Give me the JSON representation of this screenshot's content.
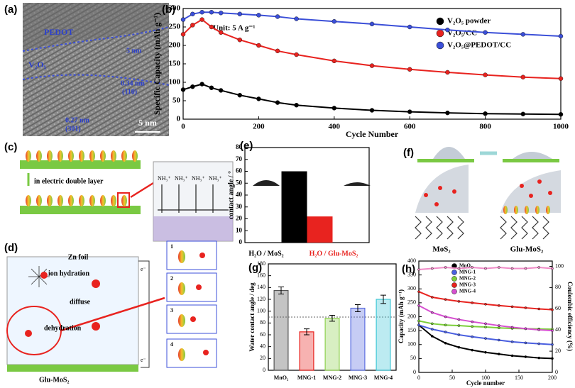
{
  "chart_data": [
    {
      "type": "line",
      "label": "(b)",
      "annotation": "Unit: 5 A g⁻¹",
      "x_label": "Cycle Number",
      "y_label": "Specific Capacity (mAh g⁻¹)",
      "x": [
        0,
        25,
        50,
        75,
        100,
        150,
        200,
        250,
        300,
        400,
        500,
        600,
        700,
        800,
        900,
        1000
      ],
      "xlim": [
        0,
        1000
      ],
      "xticks": [
        0,
        200,
        400,
        600,
        800,
        1000
      ],
      "ylim": [
        0,
        300
      ],
      "yticks": [
        0,
        50,
        100,
        150,
        200,
        250,
        300
      ],
      "markers": true,
      "series": [
        {
          "name": "V₂O₅ powder",
          "color": "#000000",
          "values": [
            80,
            88,
            95,
            85,
            78,
            65,
            55,
            45,
            38,
            30,
            24,
            20,
            17,
            15,
            14,
            13
          ]
        },
        {
          "name": "V₂O₅/CC",
          "color": "#e8231f",
          "values": [
            230,
            255,
            270,
            250,
            235,
            215,
            200,
            185,
            175,
            158,
            145,
            135,
            127,
            120,
            114,
            110
          ]
        },
        {
          "name": "V₂O₅@PEDOT/CC",
          "color": "#3b4fd8",
          "values": [
            270,
            285,
            290,
            290,
            288,
            285,
            282,
            278,
            272,
            265,
            258,
            250,
            242,
            235,
            230,
            225
          ]
        }
      ]
    },
    {
      "type": "bar",
      "label": "(e)",
      "y_label": "contact angle / °",
      "categories": [
        "H₂O / MoS₂",
        "H₂O / Glu-MoS₂"
      ],
      "values": [
        60,
        22
      ],
      "colors": [
        "#000000",
        "#e8231f"
      ],
      "ylim": [
        0,
        80
      ],
      "yticks": [
        0,
        10,
        20,
        30,
        40,
        50,
        60,
        70,
        80
      ]
    },
    {
      "type": "bar",
      "label": "(g)",
      "y_label": "Water contact angle / deg",
      "categories": [
        "MnO₂",
        "MNG-1",
        "MNG-2",
        "MNG-3",
        "MNG-4"
      ],
      "values": [
        135,
        65,
        88,
        105,
        120
      ],
      "errors": [
        6,
        5,
        5,
        6,
        7
      ],
      "colors": [
        "#555555",
        "#e8231f",
        "#8fd14f",
        "#5b6ee0",
        "#3fc7d6"
      ],
      "reference_line": 90,
      "ylim": [
        0,
        180
      ],
      "yticks": [
        0,
        20,
        40,
        60,
        80,
        100,
        120,
        140,
        160,
        180
      ]
    },
    {
      "type": "line",
      "label": "(h)",
      "x_label": "Cycle number",
      "y_label": "Capacity (mAh g⁻¹)",
      "y2_label": "Coulombic efficiency (%)",
      "x": [
        0,
        20,
        40,
        60,
        80,
        100,
        120,
        140,
        160,
        180,
        200
      ],
      "xlim": [
        0,
        200
      ],
      "xticks": [
        0,
        50,
        100,
        150,
        200
      ],
      "ylim": [
        0,
        400
      ],
      "yticks": [
        0,
        50,
        100,
        150,
        200,
        250,
        300,
        350,
        400
      ],
      "y2lim": [
        0,
        105
      ],
      "y2ticks": [
        0,
        20,
        40,
        60,
        80,
        100
      ],
      "markers": true,
      "series": [
        {
          "name": "MnO₂",
          "color": "#000000",
          "values": [
            170,
            130,
            105,
            90,
            80,
            72,
            66,
            60,
            56,
            52,
            50
          ]
        },
        {
          "name": "MNG-1",
          "color": "#4a5fe0",
          "values": [
            170,
            155,
            145,
            135,
            128,
            122,
            116,
            110,
            106,
            103,
            100
          ]
        },
        {
          "name": "MNG-2",
          "color": "#7ccf3a",
          "values": [
            185,
            175,
            170,
            168,
            165,
            163,
            160,
            158,
            157,
            156,
            155
          ]
        },
        {
          "name": "MNG-3",
          "color": "#e8231f",
          "values": [
            290,
            270,
            262,
            255,
            250,
            245,
            240,
            236,
            232,
            228,
            225
          ]
        },
        {
          "name": "MNG-4",
          "color": "#d64fd0",
          "values": [
            240,
            215,
            200,
            190,
            182,
            175,
            168,
            162,
            157,
            153,
            150
          ]
        },
        {
          "color": "#f08cc8",
          "axis": "y2",
          "values": [
            97,
            98,
            99,
            98,
            99,
            98,
            99,
            98,
            98,
            99,
            98
          ]
        }
      ]
    }
  ],
  "panel_a": {
    "label": "(a)",
    "texts": [
      "PEDOT",
      "V₂O₅",
      "5 nm",
      "0.34 nm",
      "(110)",
      "0.27 nm",
      "(301)"
    ],
    "scale_bar": "5 nm"
  },
  "panel_c": {
    "label": "(c)",
    "caption": "in electric double layer",
    "ions": [
      "NH₃⁺",
      "NH₃⁺",
      "NH₃⁺",
      "NH₃⁺"
    ]
  },
  "panel_d": {
    "label": "(d)",
    "texts": [
      "Zn foil",
      "ion hydration",
      "diffuse",
      "dehydration",
      "Glu-MoS₂"
    ],
    "electrons": [
      "e⁻",
      "e⁻"
    ],
    "steps": [
      "1",
      "2",
      "3",
      "4"
    ]
  },
  "panel_f": {
    "label": "(f)",
    "captions": [
      "MoS₂",
      "Glu-MoS₂"
    ]
  }
}
